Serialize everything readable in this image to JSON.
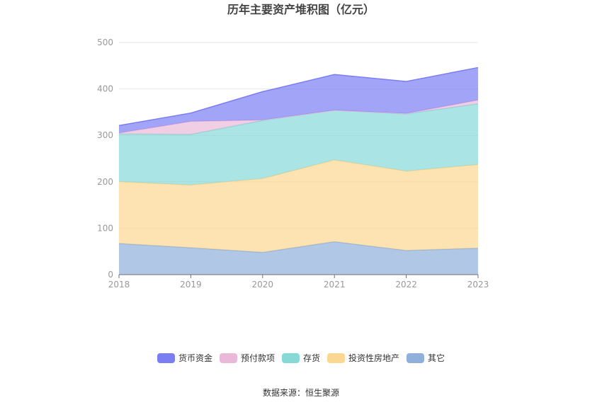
{
  "chart_data": {
    "type": "area",
    "stacked": true,
    "title": "历年主要资产堆积图（亿元）",
    "x": [
      "2018",
      "2019",
      "2020",
      "2021",
      "2022",
      "2023"
    ],
    "ylim": [
      0,
      500
    ],
    "yticks": [
      "0",
      "100",
      "200",
      "300",
      "400",
      "500"
    ],
    "grid": true,
    "legend_position": "bottom",
    "series": [
      {
        "name": "其它",
        "color": "#8fb0db",
        "values": [
          67,
          58,
          48,
          71,
          52,
          57
        ]
      },
      {
        "name": "投资性房地产",
        "color": "#fcd792",
        "values": [
          133,
          135,
          159,
          176,
          171,
          180
        ]
      },
      {
        "name": "存货",
        "color": "#87d9d8",
        "values": [
          103,
          109,
          125,
          107,
          123,
          131
        ]
      },
      {
        "name": "预付款项",
        "color": "#eab9d9",
        "values": [
          2,
          28,
          1,
          0,
          1,
          8
        ]
      },
      {
        "name": "货币资金",
        "color": "#7b7ef3",
        "values": [
          16,
          18,
          61,
          77,
          69,
          70
        ]
      }
    ],
    "source": "数据来源：恒生聚源"
  }
}
